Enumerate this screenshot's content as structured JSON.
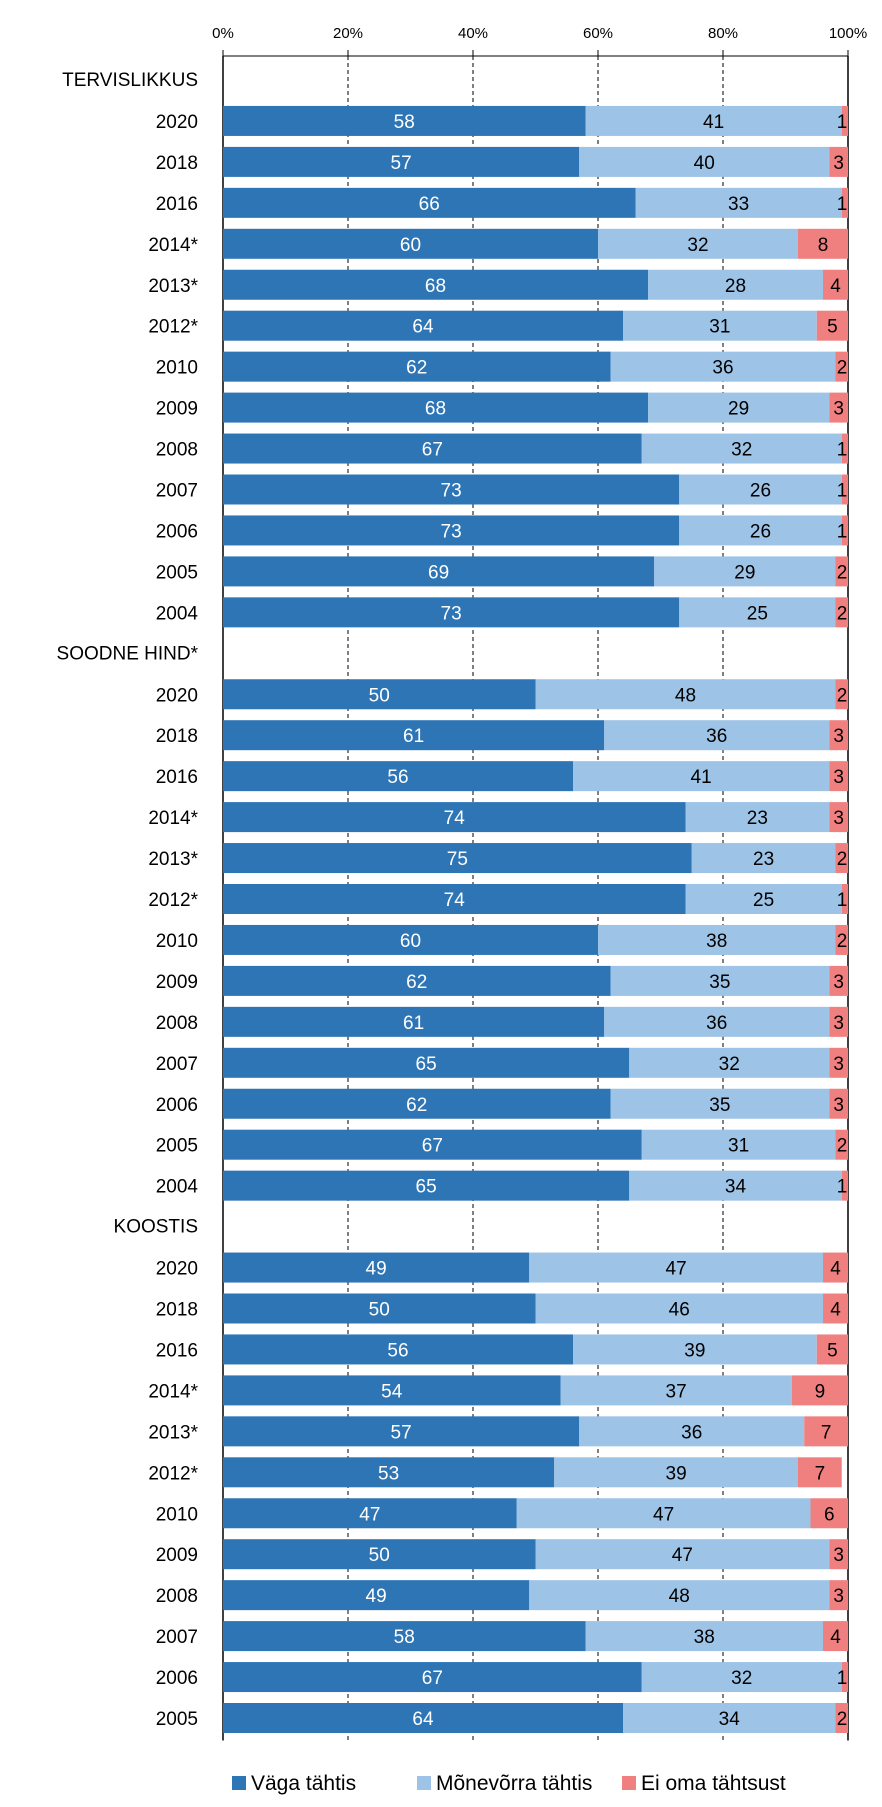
{
  "chart_data": {
    "type": "bar",
    "orientation": "horizontal",
    "stacked": true,
    "grid": true,
    "legend_position": "bottom",
    "xlim": [
      0,
      100
    ],
    "x_ticks": [
      "0%",
      "20%",
      "40%",
      "60%",
      "80%",
      "100%"
    ],
    "legend": [
      {
        "key": "vaga",
        "label": "Väga tähtis",
        "color": "#2E75B6"
      },
      {
        "key": "monevorra",
        "label": "Mõnevõrra tähtis",
        "color": "#9DC3E6"
      },
      {
        "key": "ei",
        "label": "Ei oma tähtsust",
        "color": "#F08080"
      }
    ],
    "groups": [
      {
        "label": "TERVISLIKKUS",
        "rows": [
          {
            "year": "2020",
            "values": [
              58,
              41,
              1
            ]
          },
          {
            "year": "2018",
            "values": [
              57,
              40,
              3
            ]
          },
          {
            "year": "2016",
            "values": [
              66,
              33,
              1
            ]
          },
          {
            "year": "2014*",
            "values": [
              60,
              32,
              8
            ]
          },
          {
            "year": "2013*",
            "values": [
              68,
              28,
              4
            ]
          },
          {
            "year": "2012*",
            "values": [
              64,
              31,
              5
            ]
          },
          {
            "year": "2010",
            "values": [
              62,
              36,
              2
            ]
          },
          {
            "year": "2009",
            "values": [
              68,
              29,
              3
            ]
          },
          {
            "year": "2008",
            "values": [
              67,
              32,
              1
            ]
          },
          {
            "year": "2007",
            "values": [
              73,
              26,
              1
            ]
          },
          {
            "year": "2006",
            "values": [
              73,
              26,
              1
            ]
          },
          {
            "year": "2005",
            "values": [
              69,
              29,
              2
            ]
          },
          {
            "year": "2004",
            "values": [
              73,
              25,
              2
            ]
          }
        ]
      },
      {
        "label": "SOODNE HIND*",
        "rows": [
          {
            "year": "2020",
            "values": [
              50,
              48,
              2
            ]
          },
          {
            "year": "2018",
            "values": [
              61,
              36,
              3
            ]
          },
          {
            "year": "2016",
            "values": [
              56,
              41,
              3
            ]
          },
          {
            "year": "2014*",
            "values": [
              74,
              23,
              3
            ]
          },
          {
            "year": "2013*",
            "values": [
              75,
              23,
              2
            ]
          },
          {
            "year": "2012*",
            "values": [
              74,
              25,
              1
            ]
          },
          {
            "year": "2010",
            "values": [
              60,
              38,
              2
            ]
          },
          {
            "year": "2009",
            "values": [
              62,
              35,
              3
            ]
          },
          {
            "year": "2008",
            "values": [
              61,
              36,
              3
            ]
          },
          {
            "year": "2007",
            "values": [
              65,
              32,
              3
            ]
          },
          {
            "year": "2006",
            "values": [
              62,
              35,
              3
            ]
          },
          {
            "year": "2005",
            "values": [
              67,
              31,
              2
            ]
          },
          {
            "year": "2004",
            "values": [
              65,
              34,
              1
            ]
          }
        ]
      },
      {
        "label": "KOOSTIS",
        "rows": [
          {
            "year": "2020",
            "values": [
              49,
              47,
              4
            ]
          },
          {
            "year": "2018",
            "values": [
              50,
              46,
              4
            ]
          },
          {
            "year": "2016",
            "values": [
              56,
              39,
              5
            ]
          },
          {
            "year": "2014*",
            "values": [
              54,
              37,
              9
            ]
          },
          {
            "year": "2013*",
            "values": [
              57,
              36,
              7
            ]
          },
          {
            "year": "2012*",
            "values": [
              53,
              39,
              7
            ]
          },
          {
            "year": "2010",
            "values": [
              47,
              47,
              6
            ]
          },
          {
            "year": "2009",
            "values": [
              50,
              47,
              3
            ]
          },
          {
            "year": "2008",
            "values": [
              49,
              48,
              3
            ]
          },
          {
            "year": "2007",
            "values": [
              58,
              38,
              4
            ]
          },
          {
            "year": "2006",
            "values": [
              67,
              32,
              1
            ]
          },
          {
            "year": "2005",
            "values": [
              64,
              34,
              2
            ]
          }
        ]
      }
    ]
  }
}
